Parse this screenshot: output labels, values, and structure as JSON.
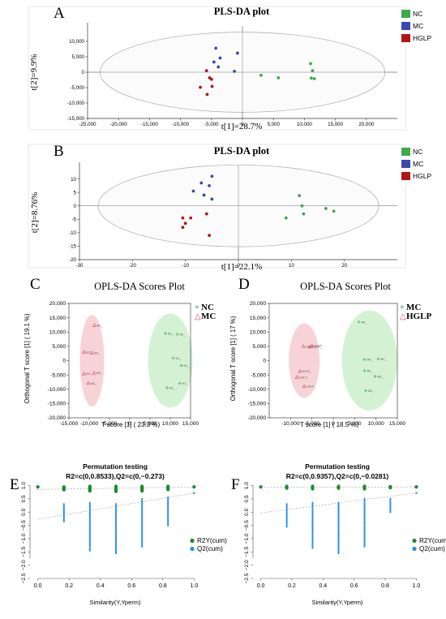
{
  "panels": {
    "A": {
      "letter": "A",
      "chart_data": {
        "type": "scatter",
        "title": "PLS-DA plot",
        "xlabel": "t[1]=28.7%",
        "ylabel": "t[2]=9.9%",
        "xlim": [
          -25000,
          25000
        ],
        "ylim": [
          -15000,
          15000
        ],
        "xticks": [
          -25000,
          -20000,
          -15000,
          -10000,
          -5000,
          0,
          5000,
          10000,
          15000,
          20000
        ],
        "xtick_labels": [
          "-25,000",
          "-20,000",
          "-15,000",
          "-10,000",
          "-5,000",
          "0",
          "5,000",
          "10,000",
          "15,000",
          "20,000"
        ],
        "yticks": [
          -15000,
          -10000,
          -5000,
          0,
          5000,
          10000
        ],
        "ytick_labels": [
          "-15,000",
          "-10,000",
          "-5,000",
          "0",
          "5,000",
          "10,000"
        ],
        "ellipse": {
          "cx": 0,
          "cy": 0,
          "rx": 23000,
          "ry": 13000
        },
        "legend": [
          {
            "name": "NC",
            "color": "#3daa48"
          },
          {
            "name": "MC",
            "color": "#3b49b0"
          },
          {
            "name": "HGLP",
            "color": "#b01515"
          }
        ],
        "series": [
          {
            "name": "NC",
            "color": "#3daa48",
            "points": [
              [
                11000,
                2800
              ],
              [
                11300,
                500
              ],
              [
                11100,
                -1900
              ],
              [
                11600,
                -2100
              ],
              [
                5800,
                -1800
              ],
              [
                3000,
                -1000
              ]
            ]
          },
          {
            "name": "MC",
            "color": "#3b49b0",
            "points": [
              [
                -4300,
                7800
              ],
              [
                -3600,
                4600
              ],
              [
                -4600,
                3300
              ],
              [
                -3900,
                1700
              ],
              [
                -800,
                6200
              ],
              [
                -1300,
                300
              ]
            ]
          },
          {
            "name": "HGLP",
            "color": "#b01515",
            "points": [
              [
                -5800,
                500
              ],
              [
                -5300,
                -1800
              ],
              [
                -6800,
                -4900
              ],
              [
                -4900,
                -4600
              ],
              [
                -5700,
                -7200
              ],
              [
                -5000,
                -2300
              ]
            ]
          }
        ]
      }
    },
    "B": {
      "letter": "B",
      "chart_data": {
        "type": "scatter",
        "title": "PLS-DA plot",
        "xlabel": "t[1]=22.1%",
        "ylabel": "t[2]=8.76%",
        "xlim": [
          -30,
          30
        ],
        "ylim": [
          -20,
          15
        ],
        "xticks": [
          -30,
          -20,
          -10,
          0,
          10,
          20
        ],
        "xtick_labels": [
          "-30",
          "-20",
          "-10",
          "0",
          "10",
          "20"
        ],
        "yticks": [
          -20,
          -15,
          -10,
          -5,
          0,
          5,
          10
        ],
        "ytick_labels": [
          "-20",
          "-15",
          "-10",
          "-5",
          "0",
          "5",
          "10"
        ],
        "ellipse": {
          "cx": 0,
          "cy": 0,
          "rx": 26.5,
          "ry": 15.2
        },
        "legend": [
          {
            "name": "NC",
            "color": "#3daa48"
          },
          {
            "name": "MC",
            "color": "#3b49b0"
          },
          {
            "name": "HGLP",
            "color": "#b01515"
          }
        ],
        "series": [
          {
            "name": "NC",
            "color": "#3daa48",
            "points": [
              [
                11.5,
                3.8
              ],
              [
                12,
                0
              ],
              [
                16.5,
                -1
              ],
              [
                18,
                -2
              ],
              [
                12.3,
                -3
              ],
              [
                9,
                -4.5
              ]
            ]
          },
          {
            "name": "MC",
            "color": "#3b49b0",
            "points": [
              [
                -5,
                11
              ],
              [
                -5.5,
                7.5
              ],
              [
                -7,
                8.5
              ],
              [
                -8.5,
                5.5
              ],
              [
                -6.5,
                4
              ],
              [
                -5,
                2.5
              ]
            ]
          },
          {
            "name": "HGLP",
            "color": "#b01515",
            "points": [
              [
                -6,
                -3
              ],
              [
                -9,
                -4.5
              ],
              [
                -10.5,
                -4.5
              ],
              [
                -10,
                -6.5
              ],
              [
                -10.5,
                -8
              ],
              [
                -5.5,
                -11
              ]
            ]
          }
        ]
      }
    },
    "C": {
      "letter": "C",
      "chart_data": {
        "type": "scatter",
        "title": "OPLS-DA Scores Plot",
        "xlabel": "T score [1] ( 23.3 %)",
        "ylabel": "Orthogonal T score [1] ( 19.1 %)",
        "xlim": [
          -15000,
          15000
        ],
        "ylim": [
          -20000,
          20000
        ],
        "xticks": [
          -15000,
          -10000,
          -5000,
          0,
          5000,
          10000,
          15000
        ],
        "xtick_labels": [
          "-15,000",
          "-10,000",
          "-5,000",
          "0",
          "5,000",
          "10,000",
          "15,000"
        ],
        "yticks": [
          -20000,
          -15000,
          -10000,
          -5000,
          0,
          5000,
          10000,
          15000,
          20000
        ],
        "ytick_labels": [
          "-20,000",
          "-15,000",
          "-10,000",
          "-5,000",
          "0",
          "5,000",
          "10,000",
          "15,000",
          "20,000"
        ],
        "ellipses": [
          {
            "group": "MC",
            "color": "#e87a86",
            "cx": -9300,
            "cy": 0,
            "rx": 3000,
            "ry": 16000
          },
          {
            "group": "NC",
            "color": "#7cd47c",
            "cx": 10000,
            "cy": 0,
            "rx": 5500,
            "ry": 16500
          }
        ],
        "legend": [
          {
            "name": "NC",
            "marker": "+",
            "color": "#3daa48"
          },
          {
            "name": "MC",
            "marker": "△",
            "color": "#d24a56"
          }
        ],
        "series": [
          {
            "name": "NC",
            "color": "#3daa48",
            "marker": "+",
            "label": "NC_",
            "points": [
              [
                8800,
                9500
              ],
              [
                11700,
                9200
              ],
              [
                10700,
                900
              ],
              [
                12700,
                -1700
              ],
              [
                12300,
                -8000
              ],
              [
                9200,
                -9500
              ]
            ]
          },
          {
            "name": "MC",
            "color": "#d24a56",
            "marker": "△",
            "label": "MC_",
            "points": [
              [
                -8700,
                12300
              ],
              [
                -11300,
                3000
              ],
              [
                -9300,
                2700
              ],
              [
                -11300,
                -4600
              ],
              [
                -8800,
                -4300
              ],
              [
                -10200,
                -7900
              ]
            ]
          }
        ]
      }
    },
    "D": {
      "letter": "D",
      "chart_data": {
        "type": "scatter",
        "title": "OPLS-DA Scores Plot",
        "xlabel": "T score [1] ( 18.5 %)",
        "ylabel": "Orthogonal T score [1] ( 17 %)",
        "xlim": [
          -15000,
          15000
        ],
        "ylim": [
          -20000,
          20000
        ],
        "xticks": [
          -10000,
          -5000,
          0,
          5000,
          10000,
          15000
        ],
        "xtick_labels": [
          "-10,000",
          "-5,000",
          "0",
          "5,000",
          "10,000",
          "15,000"
        ],
        "yticks": [
          -20000,
          -15000,
          -10000,
          -5000,
          0,
          5000,
          10000,
          15000,
          20000
        ],
        "ytick_labels": [
          "-20,000",
          "-15,000",
          "-10,000",
          "-5,000",
          "0",
          "5,000",
          "10,000",
          "15,000",
          "20,000"
        ],
        "ellipses": [
          {
            "group": "HGLP",
            "color": "#e87a86",
            "cx": -6800,
            "cy": 0,
            "rx": 3600,
            "ry": 13000
          },
          {
            "group": "MC",
            "color": "#7cd47c",
            "cx": 8500,
            "cy": 0,
            "rx": 6500,
            "ry": 17500
          }
        ],
        "legend": [
          {
            "name": "MC",
            "marker": "+",
            "color": "#3daa48"
          },
          {
            "name": "HGLP",
            "marker": "△",
            "color": "#d24a56"
          }
        ],
        "series": [
          {
            "name": "MC",
            "color": "#3daa48",
            "marker": "+",
            "label": "MC_",
            "points": [
              [
                6000,
                13500
              ],
              [
                7300,
                400
              ],
              [
                10500,
                600
              ],
              [
                7300,
                -3500
              ],
              [
                9800,
                -5500
              ],
              [
                7600,
                -10500
              ]
            ]
          },
          {
            "name": "HGLP",
            "color": "#d24a56",
            "marker": "△",
            "label": "HGLP_",
            "points": [
              [
                -7000,
                5000
              ],
              [
                -5500,
                4800
              ],
              [
                -5000,
                5200
              ],
              [
                -7800,
                -3700
              ],
              [
                -8500,
                -5800
              ],
              [
                -6800,
                -9000
              ]
            ]
          }
        ]
      }
    },
    "E": {
      "letter": "E",
      "chart_data": {
        "type": "scatter",
        "title": "Permutation testing",
        "subtitle": "R2=c(0,0.8533),Q2=c(0,−0.273)",
        "xlabel": "Similarity(Y,Yperm)",
        "ylabel": "",
        "xlim": [
          -0.05,
          1.05
        ],
        "ylim": [
          -2.5,
          1.2
        ],
        "xticks": [
          0,
          0.2,
          0.4,
          0.6,
          0.8,
          1
        ],
        "xtick_labels": [
          "0.0",
          "0.2",
          "0.4",
          "0.6",
          "0.8",
          "1.0"
        ],
        "yticks": [
          -2.5,
          -2,
          -1.5,
          -1,
          -0.5,
          0,
          0.5,
          1
        ],
        "ytick_labels": [
          "−2.5",
          "−2.0",
          "−1.5",
          "−1.0",
          "−0.5",
          "0.0",
          "0.5",
          "1.0"
        ],
        "legend": [
          {
            "name": "R2Y(cum)",
            "color": "#1f8a2e"
          },
          {
            "name": "Q2(cum)",
            "color": "#2b8fe0"
          }
        ],
        "r2y_intercept": [
          0,
          0.8533
        ],
        "q2_intercept": [
          0,
          -0.273
        ],
        "series": [
          {
            "name": "R2Y(cum)",
            "color": "#1f8a2e",
            "ranges": [
              [
                0.0,
                0.95,
                0.95
              ],
              [
                0.167,
                0.84,
                0.95
              ],
              [
                0.333,
                0.8,
                0.97
              ],
              [
                0.5,
                0.78,
                0.97
              ],
              [
                0.667,
                0.8,
                0.97
              ],
              [
                0.833,
                0.85,
                0.97
              ],
              [
                1.0,
                0.95,
                0.95
              ]
            ]
          },
          {
            "name": "Q2(cum)",
            "color": "#2b8fe0",
            "ranges": [
              [
                0.167,
                -0.35,
                0.3
              ],
              [
                0.333,
                -1.45,
                0.35
              ],
              [
                0.5,
                -1.55,
                0.3
              ],
              [
                0.667,
                -1.3,
                0.5
              ],
              [
                0.833,
                -0.5,
                0.55
              ],
              [
                1.0,
                0.72,
                0.72
              ]
            ]
          }
        ]
      }
    },
    "F": {
      "letter": "F",
      "chart_data": {
        "type": "scatter",
        "title": "Permutation testing",
        "subtitle": "R2=c(0,0.9357),Q2=c(0,−0.0281)",
        "xlabel": "Similarity(Y,Yperm)",
        "ylabel": "",
        "xlim": [
          -0.05,
          1.05
        ],
        "ylim": [
          -2.5,
          1.2
        ],
        "xticks": [
          0,
          0.2,
          0.4,
          0.6,
          0.8,
          1
        ],
        "xtick_labels": [
          "0.0",
          "0.2",
          "0.4",
          "0.6",
          "0.8",
          "1.0"
        ],
        "yticks": [
          -2.5,
          -2,
          -1.5,
          -1,
          -0.5,
          0,
          0.5,
          1
        ],
        "ytick_labels": [
          "−2.5",
          "−2.0",
          "−1.5",
          "−1.0",
          "−0.5",
          "0.0",
          "0.5",
          "1.0"
        ],
        "legend": [
          {
            "name": "R2Y(cum)",
            "color": "#1f8a2e"
          },
          {
            "name": "Q2(cum)",
            "color": "#2b8fe0"
          }
        ],
        "r2y_intercept": [
          0,
          0.9357
        ],
        "q2_intercept": [
          0,
          -0.0281
        ],
        "series": [
          {
            "name": "R2Y(cum)",
            "color": "#1f8a2e",
            "ranges": [
              [
                0.0,
                0.95,
                0.95
              ],
              [
                0.167,
                0.9,
                0.97
              ],
              [
                0.333,
                0.88,
                0.97
              ],
              [
                0.5,
                0.9,
                0.97
              ],
              [
                0.667,
                0.88,
                0.97
              ],
              [
                0.833,
                0.92,
                0.96
              ],
              [
                1.0,
                0.95,
                0.95
              ]
            ]
          },
          {
            "name": "Q2(cum)",
            "color": "#2b8fe0",
            "ranges": [
              [
                0.167,
                -0.55,
                0.3
              ],
              [
                0.333,
                -1.35,
                0.35
              ],
              [
                0.5,
                -1.55,
                0.35
              ],
              [
                0.667,
                -1.3,
                0.5
              ],
              [
                0.833,
                0.0,
                0.5
              ],
              [
                1.0,
                0.72,
                0.72
              ]
            ]
          }
        ]
      }
    }
  }
}
